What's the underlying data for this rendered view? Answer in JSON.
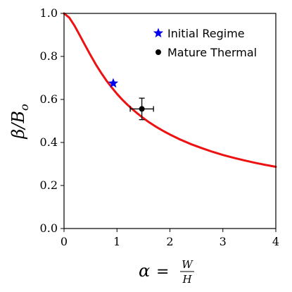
{
  "chart_data": {
    "type": "line",
    "xlim": [
      0,
      4
    ],
    "ylim": [
      0.0,
      1.0
    ],
    "xticks": [
      "0",
      "1",
      "2",
      "3",
      "4"
    ],
    "yticks": [
      "0.0",
      "0.2",
      "0.4",
      "0.6",
      "0.8",
      "1.0"
    ],
    "xlabel": {
      "lhs": "α",
      "eq": "=",
      "num": "W",
      "den": "H"
    },
    "ylabel": {
      "main": "β/B",
      "sub": "o"
    },
    "grid": false,
    "legend_position": "top-right",
    "series": [
      {
        "type": "line",
        "color": "#ee1111",
        "x": [
          0,
          0.1,
          0.2,
          0.3,
          0.4,
          0.5,
          0.6,
          0.7,
          0.8,
          0.9,
          1.0,
          1.1,
          1.2,
          1.3,
          1.4,
          1.5,
          1.6,
          1.7,
          1.8,
          1.9,
          2.0,
          2.2,
          2.4,
          2.6,
          2.8,
          3.0,
          3.2,
          3.4,
          3.6,
          3.8,
          4.0
        ],
        "y": [
          1.0,
          0.98,
          0.942,
          0.897,
          0.851,
          0.806,
          0.763,
          0.724,
          0.688,
          0.656,
          0.626,
          0.599,
          0.575,
          0.553,
          0.532,
          0.513,
          0.495,
          0.479,
          0.464,
          0.45,
          0.437,
          0.413,
          0.392,
          0.374,
          0.357,
          0.342,
          0.329,
          0.317,
          0.306,
          0.296,
          0.287
        ]
      }
    ],
    "points": [
      {
        "name": "Initial Regime",
        "marker": "star",
        "color": "#0000ee",
        "x": 0.93,
        "y": 0.675
      },
      {
        "name": "Mature Thermal",
        "marker": "circle",
        "color": "#000000",
        "x": 1.47,
        "y": 0.556,
        "xerr": 0.22,
        "yerr": 0.05
      }
    ]
  }
}
